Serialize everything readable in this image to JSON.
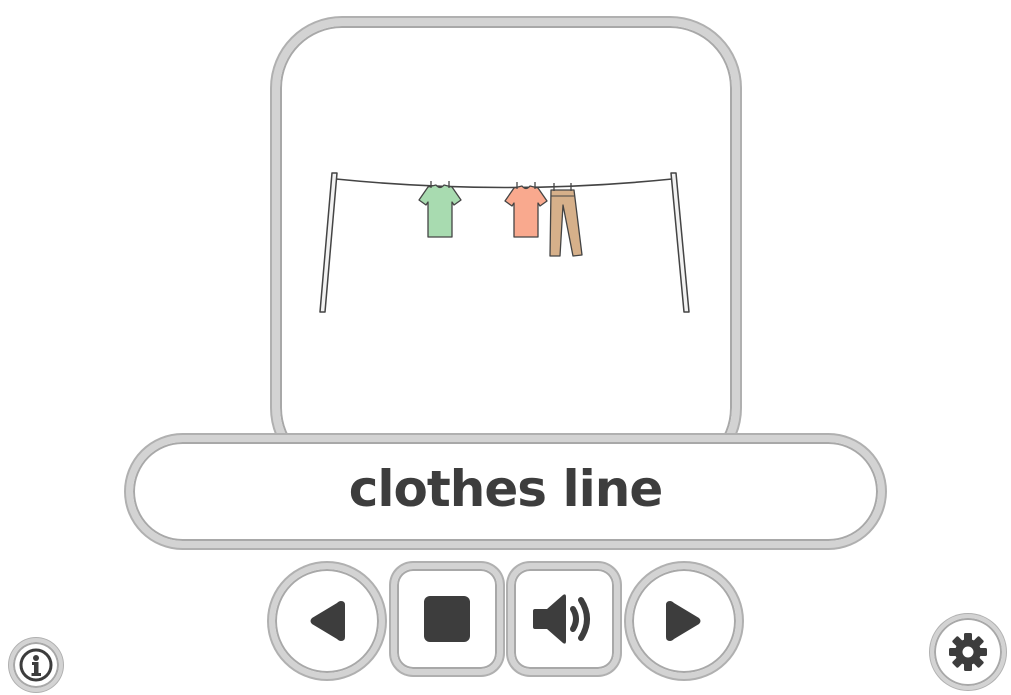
{
  "flashcard": {
    "word": "clothes line",
    "image": "clothes-line-illustration"
  },
  "controls": {
    "previous_icon": "triangle-left-icon",
    "stop_icon": "square-stop-icon",
    "audio_icon": "speaker-icon",
    "next_icon": "triangle-right-icon"
  },
  "footer": {
    "info_icon": "info-icon",
    "settings_icon": "gear-icon"
  },
  "colors": {
    "border": "#d3d3d3",
    "icon": "#3d3d3d",
    "shirt_green": "#a8dbb0",
    "shirt_orange": "#f9a98e",
    "trousers": "#d6b08a"
  }
}
